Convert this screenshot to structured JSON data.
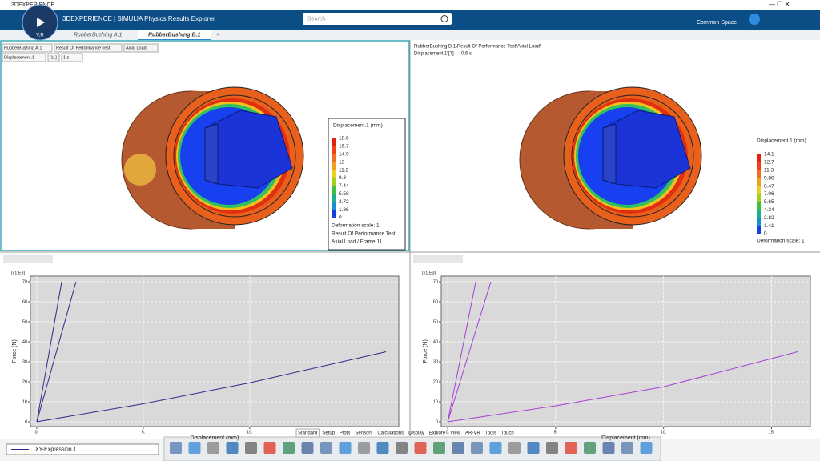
{
  "window_title": "3DEXPERIENCE",
  "app_title": "3DEXPERIENCE | SIMULIA Physics Results Explorer",
  "compass_label": "V,R",
  "search_placeholder": "Search",
  "space": "Common Space",
  "tabs": [
    "RubberBushing A.1",
    "RubberBushing B.1",
    "+"
  ],
  "left_view": {
    "selectors": [
      "RubberBushing A.1",
      "Result Of Performance Test",
      "Axial Load",
      "Displacement.1",
      "[11]",
      "1 s"
    ],
    "legend": {
      "title": "Displacement.1 (mm)",
      "labels": [
        "18.6",
        "16.7",
        "14.9",
        "13",
        "11.2",
        "9.3",
        "7.44",
        "5.58",
        "3.72",
        "1.86",
        "0"
      ],
      "notes": [
        "Deformation scale: 1",
        "Result Of Performance Test",
        "Axial Load / Frame 11"
      ]
    }
  },
  "right_view": {
    "info": [
      "RubberBushing B.1\\Result Of Performance Test\\Axial Load\\",
      "Displacement.1\\[7]",
      "0.6 s"
    ],
    "legend": {
      "title": "Displacement.1 (mm)",
      "labels": [
        "14.1",
        "12.7",
        "11.3",
        "9.88",
        "8.47",
        "7.06",
        "5.65",
        "4.24",
        "2.82",
        "1.41",
        "0"
      ],
      "notes": [
        "Deformation scale: 1"
      ]
    }
  },
  "chart_data": [
    {
      "type": "line",
      "xlabel": "Displacement (mm)",
      "ylabel": "Force (N)",
      "y_multiplier": "[x1.E3]",
      "xlim": [
        -0.3,
        17
      ],
      "ylim": [
        -2.4,
        72.8
      ],
      "xticks": [
        {
          "value": 0,
          "label": "0."
        },
        {
          "value": 5,
          "label": "5."
        },
        {
          "value": 10,
          "label": "10."
        }
      ],
      "yticks": [
        0,
        10,
        20,
        30,
        40,
        50,
        60,
        70
      ],
      "grid": true,
      "series": [
        {
          "color": "#2b2b8c",
          "x": [
            0,
            1.17
          ],
          "values": [
            0,
            70
          ]
        },
        {
          "color": "#2b2b8c",
          "x": [
            0,
            1.84
          ],
          "values": [
            0,
            70
          ]
        },
        {
          "color": "#2b2b8c",
          "x": [
            0,
            5,
            10,
            16.4
          ],
          "values": [
            0,
            9,
            19.5,
            35
          ]
        }
      ]
    },
    {
      "type": "line",
      "xlabel": "Displacement (mm)",
      "ylabel": "Force (N)",
      "y_multiplier": "[x1.E3]",
      "xlim": [
        -0.3,
        16.8
      ],
      "ylim": [
        -2.4,
        72.8
      ],
      "xticks": [
        {
          "value": 0,
          "label": "0."
        },
        {
          "value": 5,
          "label": "5."
        },
        {
          "value": 10,
          "label": "10."
        },
        {
          "value": 15,
          "label": "15."
        }
      ],
      "yticks": [
        0,
        10,
        20,
        30,
        40,
        50,
        60,
        70
      ],
      "grid": true,
      "series": [
        {
          "color": "#a53fd6",
          "x": [
            0,
            1.3
          ],
          "values": [
            0,
            70
          ]
        },
        {
          "color": "#a53fd6",
          "x": [
            0,
            2.0
          ],
          "values": [
            0,
            70
          ]
        },
        {
          "color": "#a53fd6",
          "x": [
            0,
            5,
            10,
            16.2
          ],
          "values": [
            0,
            8,
            17.5,
            35
          ]
        }
      ]
    }
  ],
  "plot_legend": "XY-Expression.1",
  "toolbar_tabs": [
    "Standard",
    "Setup",
    "Plots",
    "Sensors",
    "Calculations",
    "Display",
    "Explore",
    "View",
    "AR-VR",
    "Tools",
    "Touch"
  ]
}
